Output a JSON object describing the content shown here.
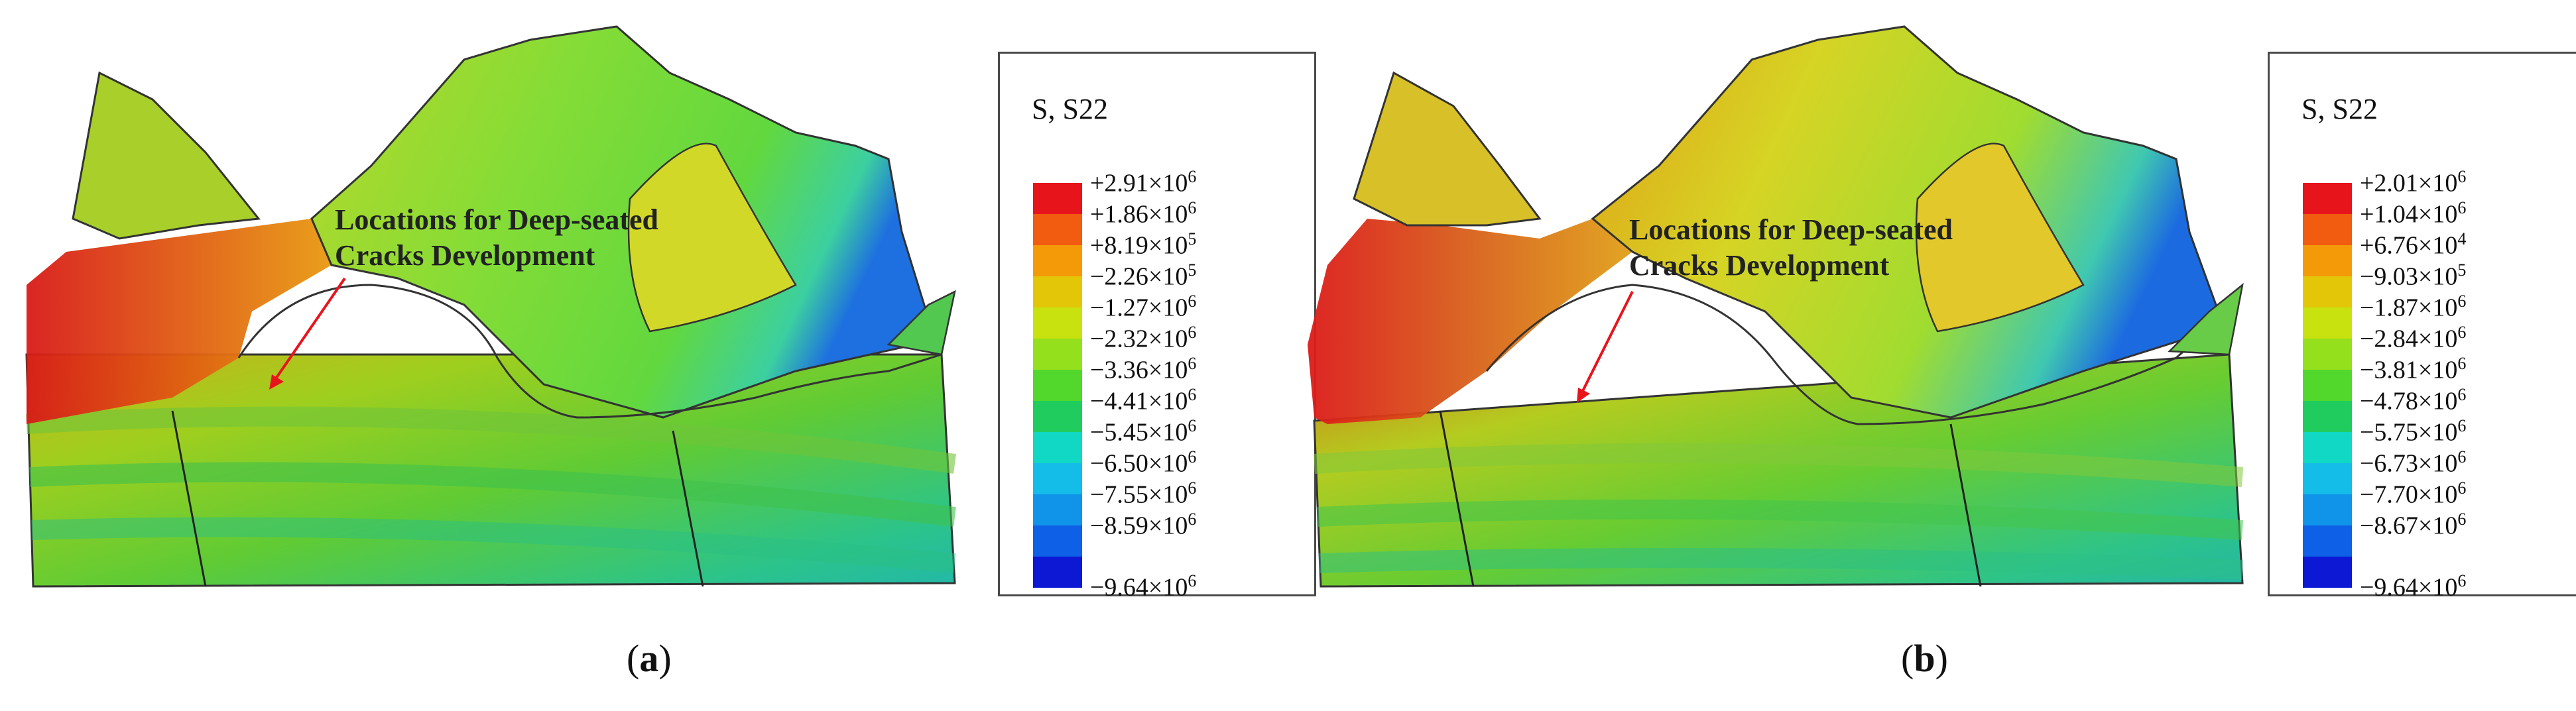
{
  "panels": [
    {
      "caption_letter": "a",
      "annotation": [
        "Locations for Deep-seated",
        "Cracks Development"
      ],
      "legend": {
        "title": "S, S22",
        "values": [
          "+2.91",
          "+1.86",
          "+8.19",
          "−2.26",
          "−1.27",
          "−2.32",
          "−3.36",
          "−4.41",
          "−5.45",
          "−6.50",
          "−7.55",
          "−8.59",
          "−9.64"
        ],
        "exponents": [
          "6",
          "6",
          "5",
          "5",
          "6",
          "6",
          "6",
          "6",
          "6",
          "6",
          "6",
          "6",
          "6"
        ]
      }
    },
    {
      "caption_letter": "b",
      "annotation": [
        "Locations for Deep-seated",
        "Cracks Development"
      ],
      "legend": {
        "title": "S, S22",
        "values": [
          "+2.01",
          "+1.04",
          "+6.76",
          "−9.03",
          "−1.87",
          "−2.84",
          "−3.81",
          "−4.78",
          "−5.75",
          "−6.73",
          "−7.70",
          "−8.67",
          "−9.64"
        ],
        "exponents": [
          "6",
          "6",
          "4",
          "5",
          "6",
          "6",
          "6",
          "6",
          "6",
          "6",
          "6",
          "6",
          "6"
        ]
      }
    }
  ],
  "colors": {
    "legend_swatches": [
      "#e8141c",
      "#f25c10",
      "#f49a08",
      "#e3c608",
      "#c8e210",
      "#94e01c",
      "#52d82c",
      "#20cc5e",
      "#10d8c4",
      "#14bce8",
      "#1094ea",
      "#0e60e6",
      "#0c18d4"
    ],
    "arrow": "#e8141c"
  }
}
